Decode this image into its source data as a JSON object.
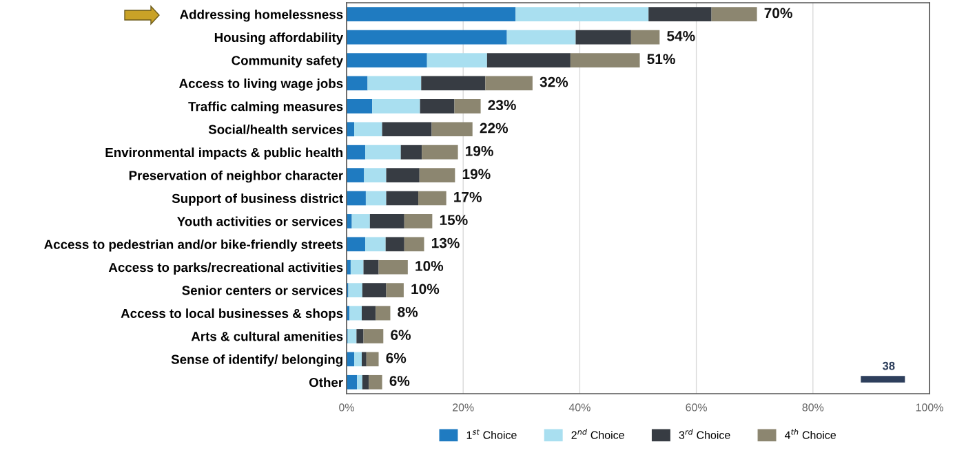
{
  "chart_data": {
    "type": "bar",
    "orientation": "horizontal",
    "stacked": true,
    "categories": [
      "Addressing homelessness",
      "Housing affordability",
      "Community safety",
      "Access to living wage jobs",
      "Traffic calming measures",
      "Social/health services",
      "Environmental impacts & public health",
      "Preservation of neighbor character",
      "Support of business district",
      "Youth activities or services",
      "Access to pedestrian and/or bike-friendly streets",
      "Access to parks/recreational activities",
      "Senior centers or services",
      "Access to local businesses & shops",
      "Arts & cultural amenities",
      "Sense of identify/ belonging",
      "Other"
    ],
    "series": [
      {
        "name": "1$^{st}$ Choice",
        "color": "#1f7bc1",
        "values": [
          29.0,
          27.5,
          13.8,
          3.6,
          4.4,
          1.3,
          3.2,
          3.0,
          3.3,
          0.9,
          3.2,
          0.7,
          0.3,
          0.5,
          0.2,
          1.3,
          1.8
        ]
      },
      {
        "name": "2$^{nd}$ Choice",
        "color": "#a9dff0",
        "values": [
          22.8,
          11.8,
          10.3,
          9.2,
          8.2,
          4.8,
          6.1,
          3.8,
          3.5,
          3.1,
          3.5,
          2.2,
          2.4,
          2.1,
          1.5,
          1.3,
          0.9
        ]
      },
      {
        "name": "3$^{rd}$ Choice",
        "color": "#373c43",
        "values": [
          10.8,
          9.5,
          14.3,
          11.0,
          5.9,
          8.5,
          3.6,
          5.7,
          5.5,
          5.9,
          3.2,
          2.6,
          4.1,
          2.4,
          1.2,
          0.8,
          1.1
        ]
      },
      {
        "name": "4$^{th}$ Choice",
        "color": "#8c8670",
        "values": [
          7.8,
          4.9,
          11.9,
          8.1,
          4.5,
          7.0,
          6.2,
          6.1,
          4.8,
          4.8,
          3.4,
          5.0,
          3.0,
          2.5,
          3.4,
          2.1,
          2.3
        ]
      }
    ],
    "totals": [
      "70%",
      "54%",
      "51%",
      "32%",
      "23%",
      "22%",
      "19%",
      "19%",
      "17%",
      "15%",
      "13%",
      "10%",
      "10%",
      "8%",
      "6%",
      "6%",
      "6%"
    ],
    "xlim": [
      0,
      100
    ],
    "xticks": [
      {
        "value": 0,
        "label": "0%"
      },
      {
        "value": 20,
        "label": "20%"
      },
      {
        "value": 40,
        "label": "40%"
      },
      {
        "value": 60,
        "label": "60%"
      },
      {
        "value": 80,
        "label": "80%"
      },
      {
        "value": 100,
        "label": "100%"
      }
    ],
    "grid": "x",
    "legend": "bottom",
    "annotations": [
      "38"
    ]
  }
}
